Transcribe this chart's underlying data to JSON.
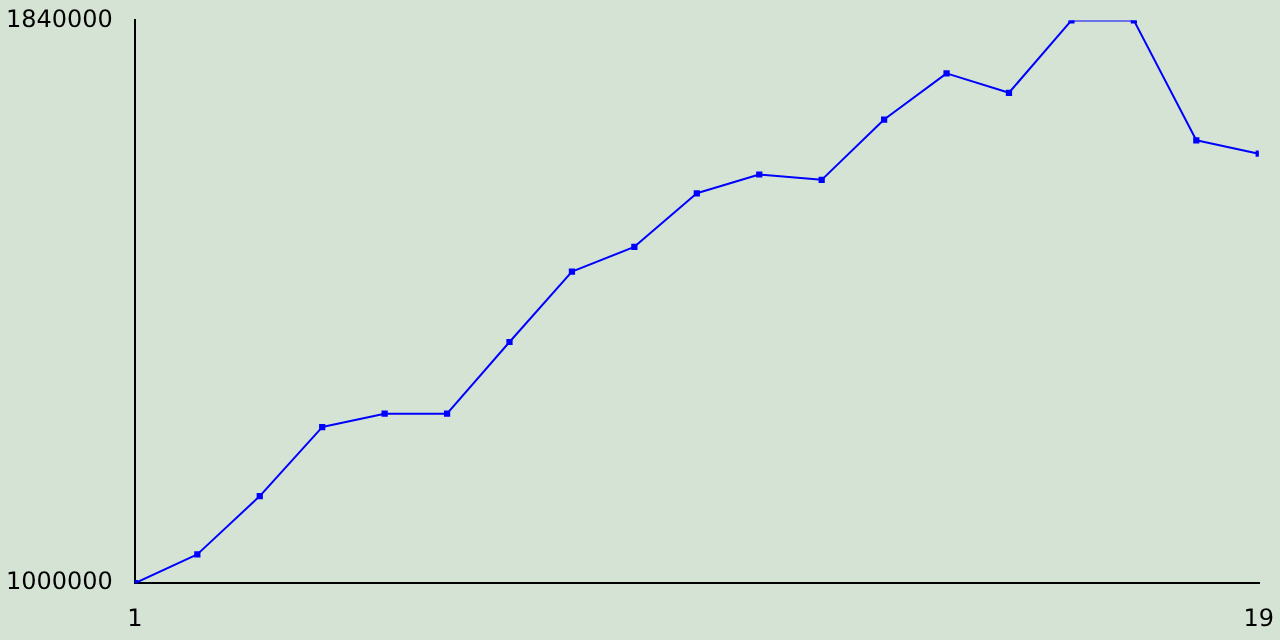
{
  "chart_data": {
    "type": "line",
    "x": [
      1,
      2,
      3,
      4,
      5,
      6,
      7,
      8,
      9,
      10,
      11,
      12,
      13,
      14,
      15,
      16,
      17,
      18,
      19
    ],
    "series": [
      {
        "color": "#0000ff",
        "values": [
          1000000,
          1043000,
          1130000,
          1233000,
          1253000,
          1253000,
          1360000,
          1465000,
          1502000,
          1582000,
          1610000,
          1602000,
          1692000,
          1761000,
          1732000,
          1840000,
          1840000,
          1661000,
          1641000
        ]
      }
    ],
    "xlim": [
      1,
      19
    ],
    "xticks": [
      1,
      19
    ],
    "ylim": [
      1000000,
      1840000
    ],
    "yticks": [
      1000000,
      1840000
    ],
    "grid": false,
    "legend": false,
    "marker": "square",
    "line_style": "solid"
  }
}
